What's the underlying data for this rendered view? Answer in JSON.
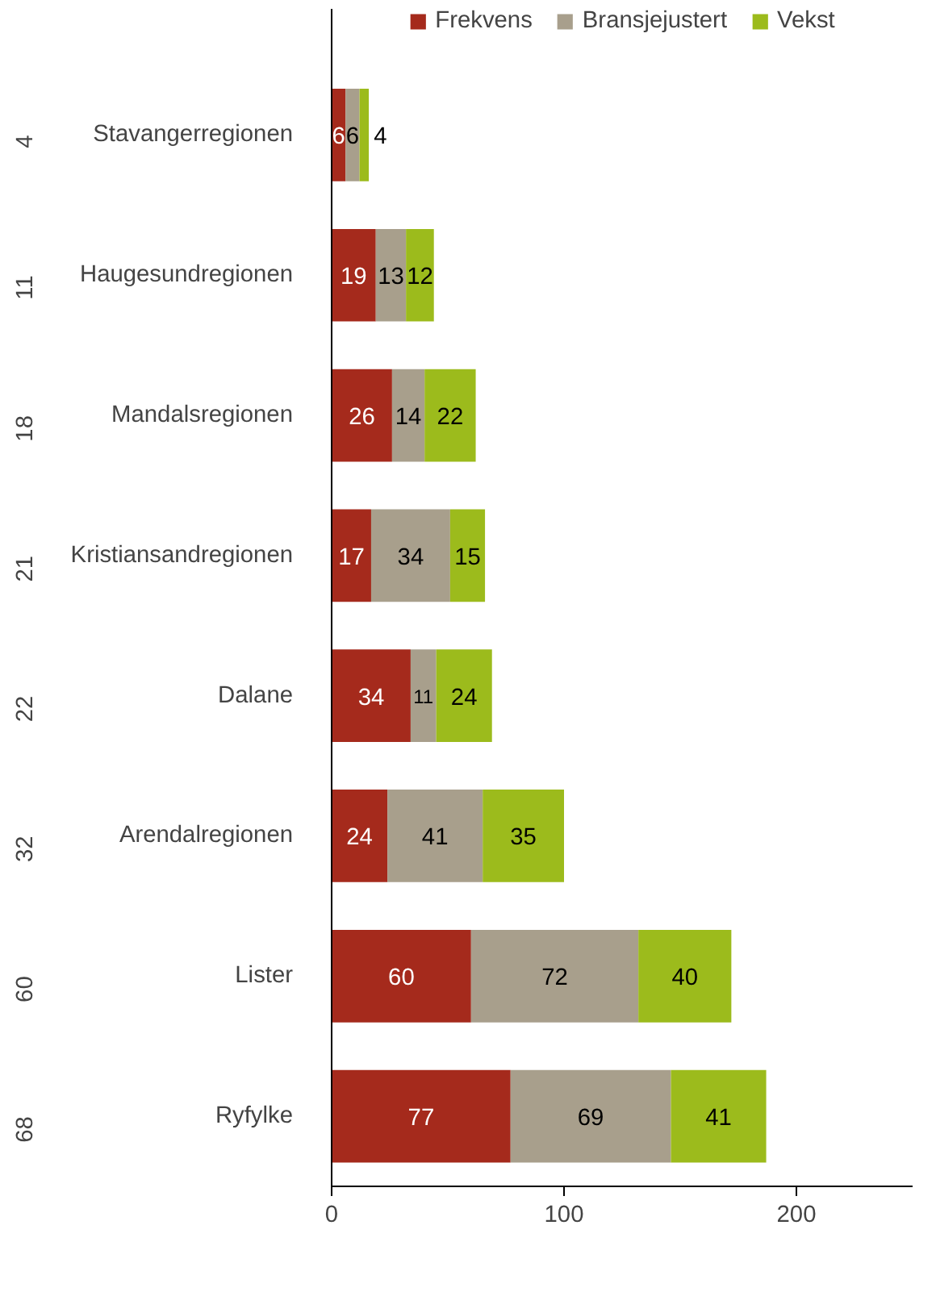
{
  "chart_data": {
    "type": "bar",
    "orientation": "horizontal",
    "stacked": true,
    "data_labels": true,
    "legend": "top",
    "grid": false,
    "categories": [
      "Stavangerregionen",
      "Haugesundregionen",
      "Mandalsregionen",
      "Kristiansandregionen",
      "Dalane",
      "Arendalregionen",
      "Lister",
      "Ryfylke"
    ],
    "annotations": [
      "4",
      "11",
      "18",
      "21",
      "22",
      "32",
      "60",
      "68"
    ],
    "xlim": [
      0,
      250
    ],
    "xticks": [
      0,
      100,
      200
    ],
    "series": [
      {
        "name": "Frekvens",
        "color": "#a52a1c",
        "values": [
          6,
          19,
          26,
          17,
          34,
          24,
          60,
          77
        ]
      },
      {
        "name": "Bransjejustert",
        "color": "#a89f8c",
        "values": [
          6,
          13,
          14,
          34,
          11,
          41,
          72,
          69
        ]
      },
      {
        "name": "Vekst",
        "color": "#9cbb1c",
        "values": [
          4,
          12,
          22,
          15,
          24,
          35,
          40,
          41
        ]
      }
    ]
  }
}
